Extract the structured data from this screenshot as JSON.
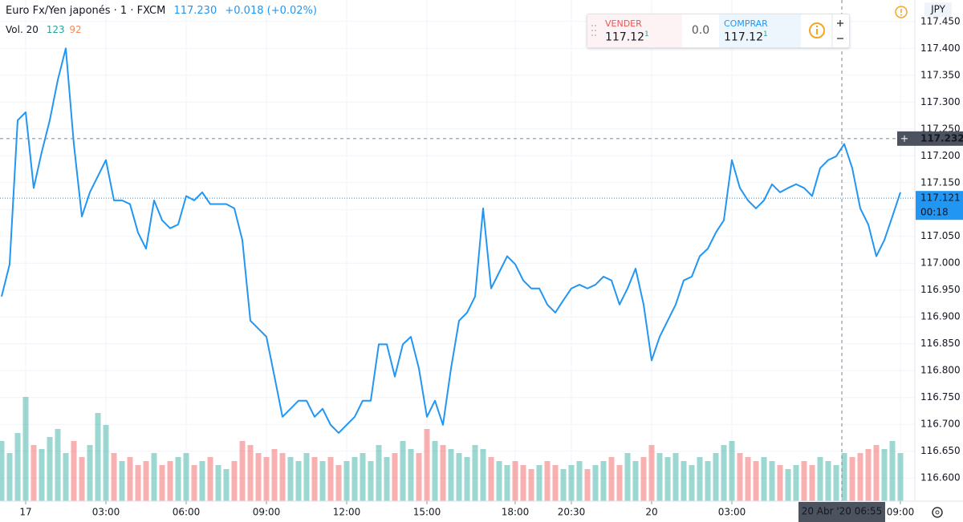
{
  "header": {
    "symbol": "Euro Fx/Yen japonés · 1 · FXCM",
    "last": "117.230",
    "change": "+0.018 (+0.02%)",
    "volume_label": "Vol. 20",
    "volume_up": "123",
    "volume_down": "92"
  },
  "trade_widget": {
    "sell_label": "VENDER",
    "sell_price": "117.12",
    "sell_sup": "1",
    "spread": "0.0",
    "buy_label": "COMPRAR",
    "buy_price": "117.12",
    "buy_sup": "1"
  },
  "chart_data": {
    "type": "line",
    "currency": "JPY",
    "color": "#2196f3",
    "grid": true,
    "categories": [
      null,
      null,
      null,
      "17",
      null,
      null,
      null,
      null,
      null,
      null,
      null,
      null,
      null,
      "03:00",
      null,
      null,
      null,
      null,
      null,
      null,
      null,
      null,
      null,
      "06:00",
      null,
      null,
      null,
      null,
      null,
      null,
      null,
      null,
      null,
      "09:00",
      null,
      null,
      null,
      null,
      null,
      null,
      null,
      null,
      null,
      "12:00",
      null,
      null,
      null,
      null,
      null,
      null,
      null,
      null,
      null,
      "15:00",
      null,
      null,
      null,
      null,
      null,
      null,
      null,
      null,
      null,
      null,
      "18:00",
      null,
      null,
      null,
      null,
      null,
      null,
      "20:30",
      null,
      null,
      null,
      null,
      null,
      null,
      null,
      null,
      null,
      "20",
      null,
      null,
      null,
      null,
      null,
      null,
      null,
      null,
      null,
      "03:00",
      null,
      null,
      null,
      null,
      null,
      null,
      null,
      null,
      null,
      null,
      null,
      null,
      null,
      null,
      null,
      null,
      null,
      null,
      null,
      null,
      "09:00"
    ],
    "values": [
      116.938,
      116.998,
      117.266,
      117.281,
      117.14,
      117.207,
      117.266,
      117.341,
      117.4,
      117.222,
      117.087,
      117.132,
      117.162,
      117.192,
      117.117,
      117.117,
      117.11,
      117.057,
      117.027,
      117.117,
      117.08,
      117.065,
      117.072,
      117.125,
      117.117,
      117.132,
      117.11,
      117.11,
      117.11,
      117.102,
      117.043,
      116.893,
      116.878,
      116.863,
      116.789,
      116.714,
      116.729,
      116.744,
      116.744,
      116.714,
      116.729,
      116.699,
      116.684,
      116.699,
      116.714,
      116.744,
      116.744,
      116.849,
      116.849,
      116.789,
      116.849,
      116.863,
      116.804,
      116.714,
      116.744,
      116.699,
      116.804,
      116.893,
      116.908,
      116.938,
      117.102,
      116.953,
      116.983,
      117.013,
      116.998,
      116.968,
      116.953,
      116.953,
      116.923,
      116.908,
      116.931,
      116.953,
      116.96,
      116.953,
      116.96,
      116.975,
      116.968,
      116.923,
      116.953,
      116.99,
      116.923,
      116.819,
      116.863,
      116.893,
      116.923,
      116.968,
      116.975,
      117.013,
      117.027,
      117.057,
      117.08,
      117.192,
      117.14,
      117.117,
      117.102,
      117.117,
      117.147,
      117.132,
      117.14,
      117.147,
      117.14,
      117.125,
      117.177,
      117.192,
      117.199,
      117.222,
      117.177,
      117.102,
      117.072,
      117.013,
      117.043,
      117.087,
      117.132
    ],
    "volume": {
      "up_color": "#26a69a",
      "down_color": "#ef5350",
      "vlim": [
        0,
        625
      ],
      "values": [
        75,
        60,
        85,
        130,
        70,
        65,
        80,
        90,
        60,
        75,
        55,
        70,
        110,
        95,
        60,
        50,
        55,
        45,
        50,
        60,
        45,
        50,
        55,
        60,
        45,
        50,
        55,
        45,
        40,
        50,
        75,
        70,
        60,
        55,
        65,
        60,
        55,
        50,
        60,
        55,
        50,
        55,
        45,
        50,
        55,
        60,
        50,
        70,
        55,
        60,
        75,
        65,
        60,
        90,
        75,
        70,
        65,
        60,
        55,
        70,
        65,
        55,
        50,
        45,
        50,
        45,
        40,
        45,
        50,
        45,
        40,
        45,
        50,
        40,
        45,
        50,
        55,
        45,
        60,
        50,
        55,
        70,
        60,
        55,
        60,
        50,
        45,
        55,
        50,
        60,
        70,
        75,
        60,
        55,
        50,
        55,
        50,
        45,
        40,
        45,
        50,
        45,
        55,
        50,
        45,
        60,
        55,
        60,
        65,
        70,
        65,
        75,
        60
      ]
    },
    "ylim": [
      116.557,
      117.49
    ],
    "yticks": [
      {
        "value": 117.45,
        "label": "117.450"
      },
      {
        "value": 117.4,
        "label": "117.400"
      },
      {
        "value": 117.35,
        "label": "117.350"
      },
      {
        "value": 117.3,
        "label": "117.300"
      },
      {
        "value": 117.25,
        "label": "117.250"
      },
      {
        "value": 117.2,
        "label": "117.200"
      },
      {
        "value": 117.15,
        "label": "117.150"
      },
      {
        "value": 117.1,
        "label": "117.100"
      },
      {
        "value": 117.05,
        "label": "117.050"
      },
      {
        "value": 117,
        "label": "117.000"
      },
      {
        "value": 116.95,
        "label": "116.950"
      },
      {
        "value": 116.9,
        "label": "116.900"
      },
      {
        "value": 116.85,
        "label": "116.850"
      },
      {
        "value": 116.8,
        "label": "116.800"
      },
      {
        "value": 116.75,
        "label": "116.750"
      },
      {
        "value": 116.7,
        "label": "116.700"
      },
      {
        "value": 116.65,
        "label": "116.650"
      },
      {
        "value": 116.6,
        "label": "116.600"
      }
    ],
    "crosshair": {
      "price": 117.232,
      "time_label": "20 Abr '20  06:55"
    },
    "current": {
      "price": 117.121,
      "countdown": "00:18"
    }
  }
}
